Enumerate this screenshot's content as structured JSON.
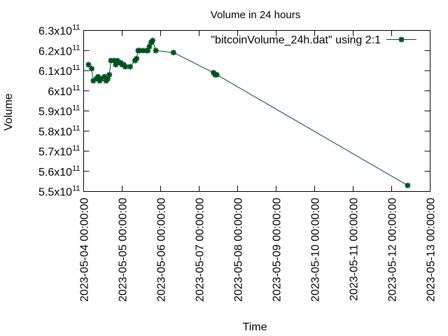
{
  "chart_data": {
    "type": "line",
    "title": "Volume in 24 hours",
    "xlabel": "Time",
    "ylabel": "Volume",
    "legend": {
      "label": "\"bitcoinVolume_24h.dat\" using 2:1",
      "position": "top-right"
    },
    "grid": false,
    "colors": {
      "series": "#005020"
    },
    "xlim": [
      "2023-05-04 00:00:00",
      "2023-05-13 00:00:00"
    ],
    "ylim": [
      550000000000.0,
      630000000000.0
    ],
    "x_ticks": [
      "2023-05-04 00:00:00",
      "2023-05-05 00:00:00",
      "2023-05-06 00:00:00",
      "2023-05-07 00:00:00",
      "2023-05-08 00:00:00",
      "2023-05-09 00:00:00",
      "2023-05-10 00:00:00",
      "2023-05-11 00:00:00",
      "2023-05-12 00:00:00",
      "2023-05-13 00:00:00"
    ],
    "y_ticks": [
      {
        "mantissa": "5.5",
        "exp": "11",
        "value": 550000000000.0
      },
      {
        "mantissa": "5.6",
        "exp": "11",
        "value": 560000000000.0
      },
      {
        "mantissa": "5.7",
        "exp": "11",
        "value": 570000000000.0
      },
      {
        "mantissa": "5.8",
        "exp": "11",
        "value": 580000000000.0
      },
      {
        "mantissa": "5.9",
        "exp": "11",
        "value": 590000000000.0
      },
      {
        "mantissa": "6",
        "exp": "11",
        "value": 600000000000.0
      },
      {
        "mantissa": "6.1",
        "exp": "11",
        "value": 610000000000.0
      },
      {
        "mantissa": "6.2",
        "exp": "11",
        "value": 620000000000.0
      },
      {
        "mantissa": "6.3",
        "exp": "11",
        "value": 630000000000.0
      }
    ],
    "series": [
      {
        "name": "\"bitcoinVolume_24h.dat\" using 2:1",
        "x": [
          "2023-05-04 03:00",
          "2023-05-04 05:00",
          "2023-05-04 06:00",
          "2023-05-04 08:00",
          "2023-05-04 09:00",
          "2023-05-04 10:00",
          "2023-05-04 11:00",
          "2023-05-04 13:00",
          "2023-05-04 14:00",
          "2023-05-04 15:00",
          "2023-05-04 16:00",
          "2023-05-04 17:00",
          "2023-05-04 19:00",
          "2023-05-04 20:00",
          "2023-05-04 21:00",
          "2023-05-04 22:00",
          "2023-05-04 23:00",
          "2023-05-05 00:00",
          "2023-05-05 01:00",
          "2023-05-05 02:00",
          "2023-05-05 05:00",
          "2023-05-05 08:00",
          "2023-05-05 09:00",
          "2023-05-05 10:00",
          "2023-05-05 11:00",
          "2023-05-05 13:00",
          "2023-05-05 15:00",
          "2023-05-05 16:00",
          "2023-05-05 17:00",
          "2023-05-05 18:00",
          "2023-05-05 19:00",
          "2023-05-05 21:00",
          "2023-05-06 08:00",
          "2023-05-07 09:00",
          "2023-05-07 10:00",
          "2023-05-07 11:00",
          "2023-05-12 10:00"
        ],
        "y": [
          613000000000.0,
          611000000000.0,
          605000000000.0,
          606000000000.0,
          607000000000.0,
          605000000000.0,
          606000000000.0,
          607000000000.0,
          605000000000.0,
          606000000000.0,
          608000000000.0,
          615000000000.0,
          615000000000.0,
          613000000000.0,
          615000000000.0,
          614000000000.0,
          614000000000.0,
          613000000000.0,
          613000000000.0,
          612000000000.0,
          612000000000.0,
          615000000000.0,
          616000000000.0,
          620000000000.0,
          620000000000.0,
          620000000000.0,
          620000000000.0,
          620000000000.0,
          622000000000.0,
          624000000000.0,
          625000000000.0,
          620000000000.0,
          619000000000.0,
          609000000000.0,
          608000000000.0,
          608000000000.0,
          553000000000.0
        ]
      }
    ]
  }
}
